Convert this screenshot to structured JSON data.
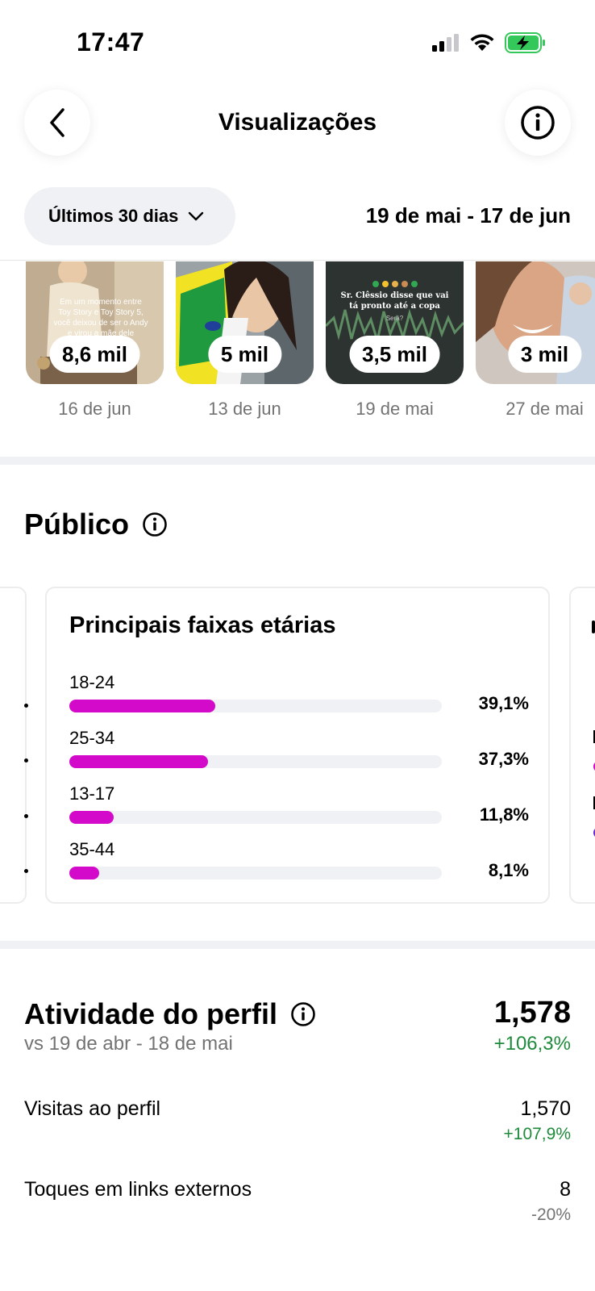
{
  "status_bar": {
    "time": "17:47"
  },
  "nav": {
    "title": "Visualizações"
  },
  "filter": {
    "period_label": "Últimos 30 dias",
    "date_range": "19 de mai - 17 de jun"
  },
  "top_content": [
    {
      "views": "8,6 mil",
      "date": "16 de jun",
      "caption": "Em um momento entre Toy Story e Toy Story 5, você deixou de ser o Andy e virou a mãe dele"
    },
    {
      "views": "5 mil",
      "date": "13 de jun"
    },
    {
      "views": "3,5 mil",
      "date": "19 de mai",
      "caption": "Sr. Clêssio disse que vai tá pronto até a copa",
      "caption_small": "Será?"
    },
    {
      "views": "3 mil",
      "date": "27 de mai"
    }
  ],
  "audience": {
    "title": "Público",
    "age_card": {
      "title": "Principais faixas etárias",
      "rows": [
        {
          "label": "18-24",
          "value": "39,1%",
          "fraction": 0.391
        },
        {
          "label": "25-34",
          "value": "37,3%",
          "fraction": 0.373
        },
        {
          "label": "13-17",
          "value": "11,8%",
          "fraction": 0.118
        },
        {
          "label": "35-44",
          "value": "8,1%",
          "fraction": 0.081
        }
      ]
    }
  },
  "profile_activity": {
    "title": "Atividade do perfil",
    "comparison": "vs 19 de abr - 18 de mai",
    "total": "1,578",
    "total_change": "+106,3%",
    "metrics": [
      {
        "label": "Visitas ao perfil",
        "value": "1,570",
        "change": "+107,9%",
        "trend": "up"
      },
      {
        "label": "Toques em links externos",
        "value": "8",
        "change": "-20%",
        "trend": "down"
      }
    ]
  },
  "colors": {
    "accent": "#d30ac9",
    "positive": "#1f8a3b",
    "muted": "#737373",
    "track": "#eff1f4",
    "battery": "#34c759"
  }
}
